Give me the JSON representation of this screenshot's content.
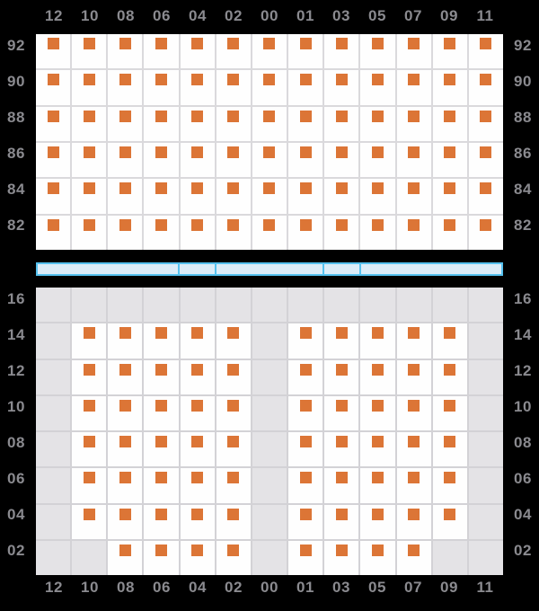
{
  "columns": [
    "12",
    "10",
    "08",
    "06",
    "04",
    "02",
    "00",
    "01",
    "03",
    "05",
    "07",
    "09",
    "11"
  ],
  "upper_section": {
    "row_labels": [
      "92",
      "90",
      "88",
      "86",
      "84",
      "82"
    ],
    "seat_rows": [
      "1111111111111",
      "1111111111111",
      "1111111111111",
      "1111111111111",
      "1111111111111",
      "1111111111111"
    ]
  },
  "corridor": {
    "segments": [
      4,
      1,
      3,
      1,
      4
    ]
  },
  "lower_section": {
    "row_labels": [
      "16",
      "14",
      "12",
      "10",
      "08",
      "06",
      "04",
      "02"
    ],
    "seat_rows": [
      "0000000000000",
      "0111110111110",
      "0111110111110",
      "0111110111110",
      "0111110111110",
      "0111110111110",
      "0111110111110",
      "0011110111100"
    ]
  },
  "colors": {
    "background": "#000000",
    "seat_marker": "#DC7536",
    "cell_white": "#FEFEFE",
    "cell_gray": "#E4E3E6",
    "gridline_upper": "#DAD9DC",
    "gridline_lower": "#D3D2D6",
    "corridor_fill": "#DBECF8",
    "corridor_border": "#55C1EF",
    "label_text": "#8A8A8F"
  }
}
